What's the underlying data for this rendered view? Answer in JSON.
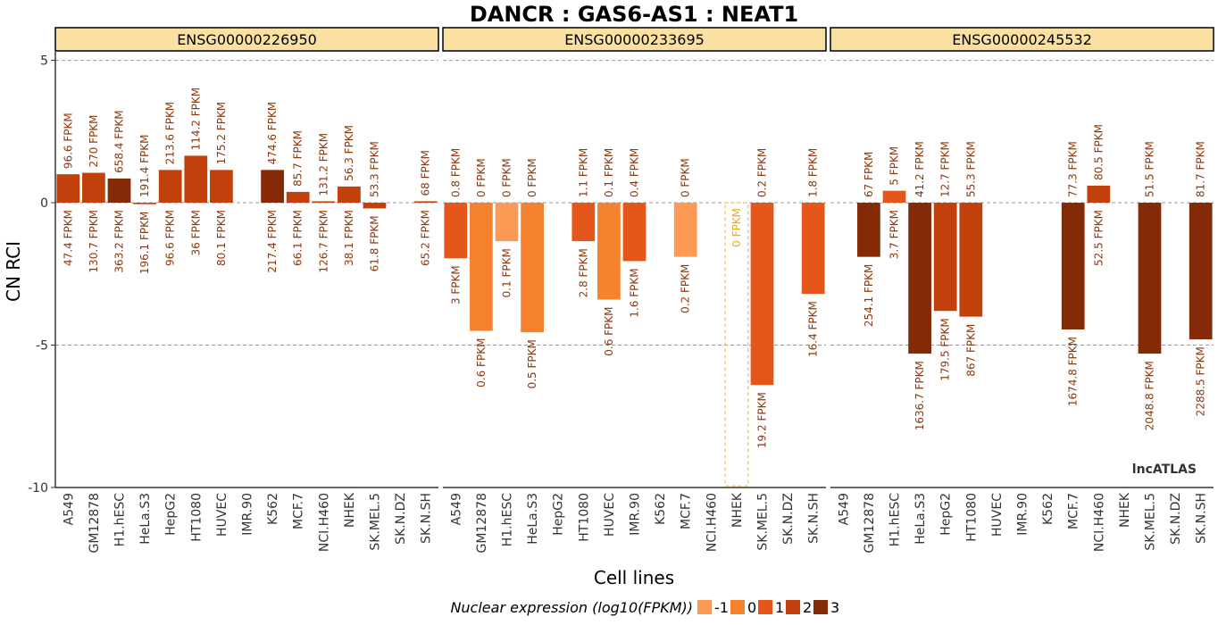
{
  "chart_data": {
    "type": "bar",
    "title": "DANCR : GAS6-AS1 : NEAT1",
    "xlabel": "Cell lines",
    "ylabel": "CN RCI",
    "ylim": [
      -10,
      5.3
    ],
    "yticks": [
      5,
      0,
      -5,
      -10
    ],
    "unit_suffix": " FPKM",
    "watermark": "lncATLAS",
    "categories": [
      "A549",
      "GM12878",
      "H1.hESC",
      "HeLa.S3",
      "HepG2",
      "HT1080",
      "HUVEC",
      "IMR.90",
      "K562",
      "MCF.7",
      "NCI.H460",
      "NHEK",
      "SK.MEL.5",
      "SK.N.DZ",
      "SK.N.SH"
    ],
    "legend": {
      "title": "Nuclear expression (log10(FPKM))",
      "levels": [
        {
          "label": "-1",
          "color": "#fc9a55"
        },
        {
          "label": "0",
          "color": "#f5822e"
        },
        {
          "label": "1",
          "color": "#e5561a"
        },
        {
          "label": "2",
          "color": "#c1400b"
        },
        {
          "label": "3",
          "color": "#842a06"
        }
      ]
    },
    "panels": [
      {
        "strip": "ENSG00000226950",
        "values": [
          1.0,
          1.05,
          0.85,
          -0.05,
          1.15,
          1.65,
          1.15,
          null,
          1.15,
          0.38,
          0.05,
          0.57,
          -0.2,
          null,
          0.05
        ],
        "level": [
          2,
          2,
          3,
          2,
          2,
          2,
          2,
          null,
          3,
          2,
          2,
          2,
          2,
          null,
          2
        ],
        "nuclear_fpkm": [
          "96.6",
          "270",
          "658.4",
          "191.4",
          "213.6",
          "114.2",
          "175.2",
          "",
          "474.6",
          "85.7",
          "131.2",
          "56.3",
          "53.3",
          "",
          "68"
        ],
        "cytoplasm_fpkm": [
          "47.4",
          "130.7",
          "363.2",
          "196.1",
          "96.6",
          "36",
          "80.1",
          "",
          "217.4",
          "66.1",
          "126.7",
          "38.1",
          "61.8",
          "",
          "65.2"
        ]
      },
      {
        "strip": "ENSG00000233695",
        "values": [
          -1.95,
          -4.5,
          -1.35,
          -4.55,
          null,
          -1.35,
          -3.4,
          -2.05,
          null,
          -1.9,
          null,
          0,
          -6.4,
          null,
          -3.2
        ],
        "level": [
          1,
          0,
          -1,
          0,
          null,
          1,
          0,
          1,
          null,
          -1,
          null,
          null,
          1,
          null,
          1
        ],
        "nuclear_fpkm": [
          "0.8",
          "0",
          "0",
          "0",
          "",
          "1.1",
          "0.1",
          "0.4",
          "",
          "0",
          "",
          "",
          "0.2",
          "",
          "1.8"
        ],
        "cytoplasm_fpkm": [
          "3",
          "0.6",
          "0.1",
          "0.5",
          "",
          "2.8",
          "0.6",
          "1.6",
          "",
          "0.2",
          "",
          "0",
          "19.2",
          "",
          "16.4"
        ]
      },
      {
        "strip": "ENSG00000245532",
        "values": [
          null,
          -1.9,
          0.42,
          -5.3,
          -3.8,
          -4.0,
          null,
          null,
          null,
          -4.45,
          0.6,
          null,
          -5.3,
          null,
          -4.8
        ],
        "level": [
          null,
          3,
          1,
          3,
          2,
          2,
          null,
          null,
          null,
          3,
          2,
          null,
          3,
          null,
          3
        ],
        "nuclear_fpkm": [
          "",
          "67",
          "5",
          "41.2",
          "12.7",
          "55.3",
          "",
          "",
          "",
          "77.3",
          "80.5",
          "",
          "51.5",
          "",
          "81.7"
        ],
        "cytoplasm_fpkm": [
          "",
          "254.1",
          "3.7",
          "1636.7",
          "179.5",
          "867",
          "",
          "",
          "",
          "1674.8",
          "52.5",
          "",
          "2048.8",
          "",
          "2288.5"
        ]
      }
    ]
  }
}
